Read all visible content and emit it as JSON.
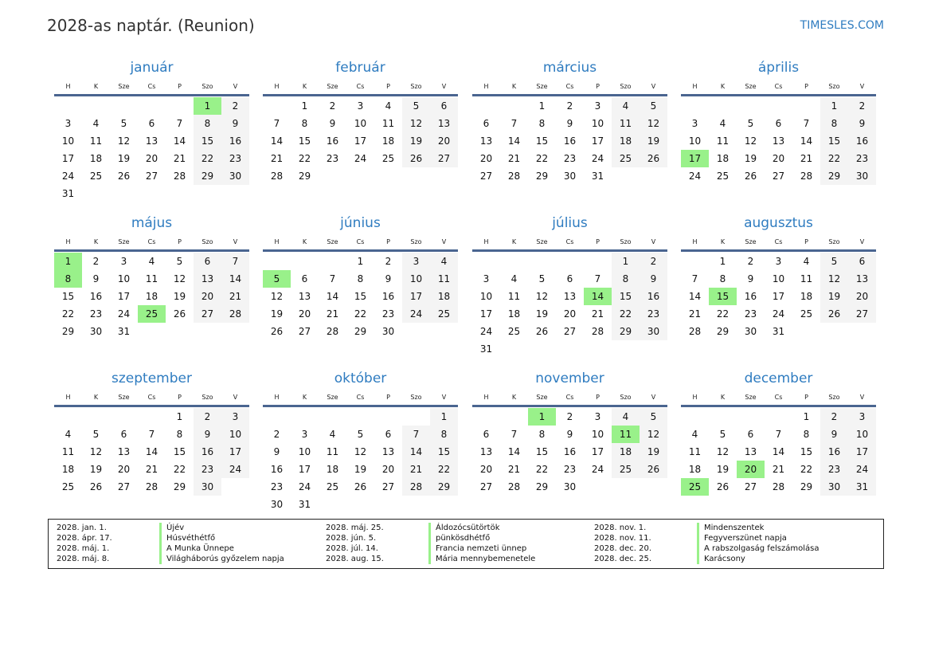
{
  "title": "2028-as naptár. (Reunion)",
  "brand": "TIMESLES.COM",
  "colors": {
    "title": "#2f7cc0",
    "holiday": "#99f18a",
    "weekend": "#f4f4f4",
    "rule": "#4a6590"
  },
  "weekdays": [
    "H",
    "K",
    "Sze",
    "Cs",
    "P",
    "Szo",
    "V"
  ],
  "months": [
    {
      "name": "január",
      "lead": 5,
      "days": 31,
      "holidays": [
        1
      ]
    },
    {
      "name": "február",
      "lead": 1,
      "days": 29,
      "holidays": []
    },
    {
      "name": "március",
      "lead": 2,
      "days": 31,
      "holidays": []
    },
    {
      "name": "április",
      "lead": 5,
      "days": 30,
      "holidays": [
        17
      ]
    },
    {
      "name": "május",
      "lead": 0,
      "days": 31,
      "holidays": [
        1,
        8,
        25
      ]
    },
    {
      "name": "június",
      "lead": 3,
      "days": 30,
      "holidays": [
        5
      ]
    },
    {
      "name": "július",
      "lead": 5,
      "days": 31,
      "holidays": [
        14
      ]
    },
    {
      "name": "augusztus",
      "lead": 1,
      "days": 31,
      "holidays": [
        15
      ]
    },
    {
      "name": "szeptember",
      "lead": 4,
      "days": 30,
      "holidays": []
    },
    {
      "name": "október",
      "lead": 6,
      "days": 31,
      "holidays": []
    },
    {
      "name": "november",
      "lead": 2,
      "days": 30,
      "holidays": [
        1,
        11
      ]
    },
    {
      "name": "december",
      "lead": 4,
      "days": 31,
      "holidays": [
        20,
        25
      ]
    }
  ],
  "legend": [
    [
      {
        "date": "2028. jan. 1.",
        "name": "Újév"
      },
      {
        "date": "2028. ápr. 17.",
        "name": "Húsvéthétfő"
      },
      {
        "date": "2028. máj. 1.",
        "name": "A Munka Ünnepe"
      },
      {
        "date": "2028. máj. 8.",
        "name": "Világháborús győzelem napja"
      }
    ],
    [
      {
        "date": "2028. máj. 25.",
        "name": "Áldozócsütörtök"
      },
      {
        "date": "2028. jún. 5.",
        "name": "pünkösdhétfő"
      },
      {
        "date": "2028. júl. 14.",
        "name": "Francia nemzeti ünnep"
      },
      {
        "date": "2028. aug. 15.",
        "name": "Mária mennybemenetele"
      }
    ],
    [
      {
        "date": "2028. nov. 1.",
        "name": "Mindenszentek"
      },
      {
        "date": "2028. nov. 11.",
        "name": "Fegyverszünet napja"
      },
      {
        "date": "2028. dec. 20.",
        "name": "A rabszolgaság felszámolása"
      },
      {
        "date": "2028. dec. 25.",
        "name": "Karácsony"
      }
    ]
  ]
}
